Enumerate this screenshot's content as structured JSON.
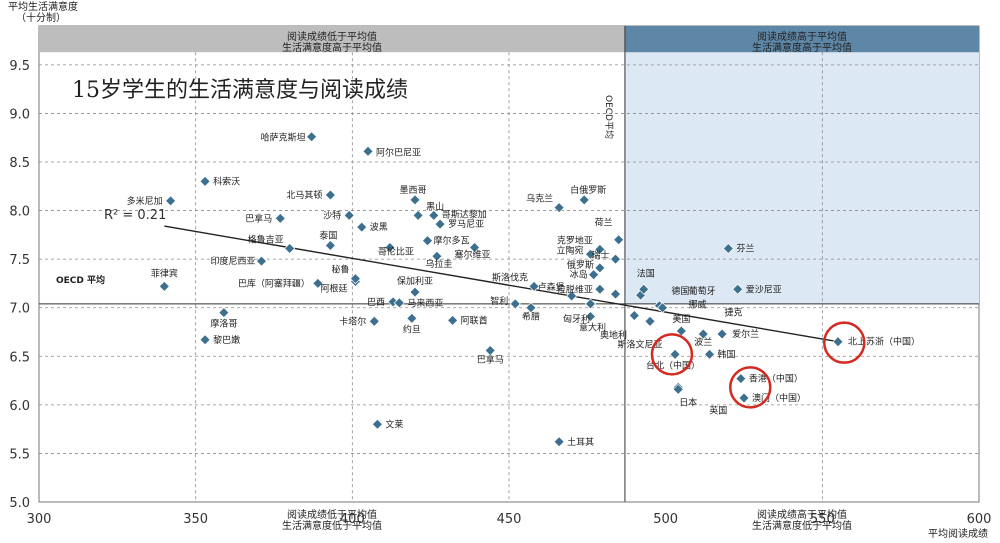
{
  "chart_data": {
    "type": "scatter",
    "title": "15岁学生的生活满意度与阅读成绩",
    "ylabel_line1": "平均生活满意度",
    "ylabel_line2": "（十分制）",
    "xlabel": "平均阅读成绩",
    "xlim": [
      300,
      600
    ],
    "ylim": [
      5.0,
      9.9
    ],
    "xticks": [
      "300",
      "350",
      "400",
      "450",
      "500",
      "550",
      "600"
    ],
    "yticks": [
      "5.0",
      "5.5",
      "6.0",
      "6.5",
      "7.0",
      "7.5",
      "8.0",
      "8.5",
      "9.0",
      "9.5"
    ],
    "oecd_reading_mean": 487,
    "oecd_satisfaction_mean": 7.04,
    "oecd_avg_label": "OECD 平均",
    "oecd_vertical_label": "OECD平均",
    "r2_label": "R² = 0.21",
    "trendline": {
      "x1": 340,
      "y1": 7.84,
      "x2": 555,
      "y2": 6.65
    },
    "quadrants": {
      "top_left": [
        "阅读成绩低于平均值",
        "生活满意度高于平均值"
      ],
      "top_right": [
        "阅读成绩高于平均值",
        "生活满意度高于平均值"
      ],
      "bottom_left": [
        "阅读成绩低于平均值",
        "生活满意度低于平均值"
      ],
      "bottom_right": [
        "阅读成绩高于平均值",
        "生活满意度低于平均值"
      ]
    },
    "highlight_color": "#d42a20",
    "point_color": "#3d6f8e",
    "points": [
      {
        "name": "哈萨克斯坦",
        "x": 387,
        "y": 8.76,
        "dx": -6,
        "dy": 4,
        "anchor": "end"
      },
      {
        "name": "阿尔巴尼亚",
        "x": 405,
        "y": 8.61,
        "dx": 8,
        "dy": 4,
        "anchor": "start"
      },
      {
        "name": "科索沃",
        "x": 353,
        "y": 8.3,
        "dx": 8,
        "dy": 3,
        "anchor": "start"
      },
      {
        "name": "北马其顿",
        "x": 393,
        "y": 8.16,
        "dx": -8,
        "dy": 3,
        "anchor": "end"
      },
      {
        "name": "多米尼加",
        "x": 342,
        "y": 8.1,
        "dx": -8,
        "dy": 3,
        "anchor": "end"
      },
      {
        "name": "墨西哥",
        "x": 420,
        "y": 8.11,
        "dx": -2,
        "dy": -7,
        "anchor": "middle"
      },
      {
        "name": "黑山",
        "x": 421,
        "y": 7.95,
        "dx": 8,
        "dy": -6,
        "anchor": "start"
      },
      {
        "name": "哥斯达黎加",
        "x": 426,
        "y": 7.95,
        "dx": 8,
        "dy": 2,
        "anchor": "start"
      },
      {
        "name": "罗马尼亚",
        "x": 428,
        "y": 7.86,
        "dx": 8,
        "dy": 3,
        "anchor": "start"
      },
      {
        "name": "乌克兰",
        "x": 466,
        "y": 8.03,
        "dx": -6,
        "dy": -6,
        "anchor": "end"
      },
      {
        "name": "白俄罗斯",
        "x": 474,
        "y": 8.11,
        "dx": 4,
        "dy": -7,
        "anchor": "middle"
      },
      {
        "name": "巴拿马",
        "x": 377,
        "y": 7.92,
        "dx": -8,
        "dy": 3,
        "anchor": "end"
      },
      {
        "name": "沙特",
        "x": 399,
        "y": 7.95,
        "dx": -8,
        "dy": 3,
        "anchor": "end"
      },
      {
        "name": "波黑",
        "x": 403,
        "y": 7.83,
        "dx": 8,
        "dy": 3,
        "anchor": "start"
      },
      {
        "name": "摩尔多瓦",
        "x": 424,
        "y": 7.69,
        "dx": 6,
        "dy": 3,
        "anchor": "start"
      },
      {
        "name": "泰国",
        "x": 393,
        "y": 7.64,
        "dx": -2,
        "dy": -7,
        "anchor": "middle"
      },
      {
        "name": "格鲁吉亚",
        "x": 380,
        "y": 7.61,
        "dx": -6,
        "dy": -6,
        "anchor": "end"
      },
      {
        "name": "哥伦比亚",
        "x": 412,
        "y": 7.62,
        "dx": 6,
        "dy": 7,
        "anchor": "middle"
      },
      {
        "name": "乌拉圭",
        "x": 427,
        "y": 7.53,
        "dx": 2,
        "dy": 11,
        "anchor": "middle"
      },
      {
        "name": "塞尔维亚",
        "x": 439,
        "y": 7.62,
        "dx": -2,
        "dy": 10,
        "anchor": "middle"
      },
      {
        "name": "荷兰",
        "x": 485,
        "y": 7.7,
        "dx": -6,
        "dy": -14,
        "anchor": "end"
      },
      {
        "name": "克罗地亚",
        "x": 479,
        "y": 7.6,
        "dx": -7,
        "dy": -6,
        "anchor": "end"
      },
      {
        "name": "立陶宛",
        "x": 476,
        "y": 7.55,
        "dx": -7,
        "dy": -1,
        "anchor": "end"
      },
      {
        "name": "瑞士",
        "x": 484,
        "y": 7.5,
        "dx": -6,
        "dy": -1,
        "anchor": "end"
      },
      {
        "name": "俄罗斯",
        "x": 479,
        "y": 7.41,
        "dx": -6,
        "dy": 0,
        "anchor": "end"
      },
      {
        "name": "冰岛",
        "x": 477,
        "y": 7.34,
        "dx": -6,
        "dy": 3,
        "anchor": "end"
      },
      {
        "name": "印度尼西亚",
        "x": 371,
        "y": 7.48,
        "dx": -6,
        "dy": 3,
        "anchor": "end"
      },
      {
        "name": "菲律宾",
        "x": 340,
        "y": 7.22,
        "dx": 0,
        "dy": -10,
        "anchor": "middle"
      },
      {
        "name": "巴西",
        "x": 413,
        "y": 7.06,
        "dx": -8,
        "dy": 3,
        "anchor": "end"
      },
      {
        "name": "巴库（阿塞拜疆）",
        "x": 389,
        "y": 7.25,
        "dx": -8,
        "dy": 3,
        "anchor": "end"
      },
      {
        "name": "阿根廷",
        "x": 401,
        "y": 7.27,
        "dx": -8,
        "dy": 10,
        "anchor": "end"
      },
      {
        "name": "秘鲁",
        "x": 401,
        "y": 7.3,
        "dx": -6,
        "dy": -6,
        "anchor": "end"
      },
      {
        "name": "保加利亚",
        "x": 420,
        "y": 7.16,
        "dx": 0,
        "dy": -8,
        "anchor": "middle"
      },
      {
        "name": "马来西亚",
        "x": 415,
        "y": 7.05,
        "dx": 8,
        "dy": 3,
        "anchor": "start"
      },
      {
        "name": "斯洛伐克",
        "x": 458,
        "y": 7.22,
        "dx": -6,
        "dy": -6,
        "anchor": "end"
      },
      {
        "name": "卢森堡",
        "x": 470,
        "y": 7.12,
        "dx": -7,
        "dy": -6,
        "anchor": "end"
      },
      {
        "name": "拉脱维亚",
        "x": 479,
        "y": 7.19,
        "dx": -7,
        "dy": 3,
        "anchor": "end"
      },
      {
        "name": "智利",
        "x": 452,
        "y": 7.04,
        "dx": -7,
        "dy": 0,
        "anchor": "end"
      },
      {
        "name": "摩洛哥",
        "x": 359,
        "y": 6.95,
        "dx": 0,
        "dy": 14,
        "anchor": "middle"
      },
      {
        "name": "卡塔尔",
        "x": 407,
        "y": 6.86,
        "dx": -8,
        "dy": 3,
        "anchor": "end"
      },
      {
        "name": "约旦",
        "x": 419,
        "y": 6.89,
        "dx": 0,
        "dy": 14,
        "anchor": "middle"
      },
      {
        "name": "阿联酋",
        "x": 432,
        "y": 6.87,
        "dx": 8,
        "dy": 3,
        "anchor": "start"
      },
      {
        "name": "希腊",
        "x": 457,
        "y": 7.0,
        "dx": 0,
        "dy": 12,
        "anchor": "middle"
      },
      {
        "name": "匈牙利",
        "x": 476,
        "y": 7.04,
        "dx": -14,
        "dy": 18,
        "anchor": "middle"
      },
      {
        "name": "意大利",
        "x": 476,
        "y": 6.91,
        "dx": 2,
        "dy": 14,
        "anchor": "middle"
      },
      {
        "name": "奥地利",
        "x": 484,
        "y": 7.14,
        "dx": -2,
        "dy": 44,
        "anchor": "middle"
      },
      {
        "name": "黎巴嫩",
        "x": 353,
        "y": 6.67,
        "dx": 8,
        "dy": 3,
        "anchor": "start"
      },
      {
        "name": "巴拿马2",
        "x": 444,
        "y": 6.56,
        "dx": 0,
        "dy": 12,
        "anchor": "middle",
        "label": "巴拿马"
      },
      {
        "name": "文莱",
        "x": 408,
        "y": 5.8,
        "dx": 8,
        "dy": 3,
        "anchor": "start"
      },
      {
        "name": "土耳其",
        "x": 466,
        "y": 5.62,
        "dx": 8,
        "dy": 3,
        "anchor": "start"
      },
      {
        "name": "芬兰",
        "x": 520,
        "y": 7.61,
        "dx": 8,
        "dy": 3,
        "anchor": "start"
      },
      {
        "name": "葡萄牙",
        "x": 492,
        "y": 7.13,
        "dx": 48,
        "dy": -1,
        "anchor": "start"
      },
      {
        "name": "法国",
        "x": 493,
        "y": 7.19,
        "dx": 2,
        "dy": -13,
        "anchor": "middle"
      },
      {
        "name": "德国",
        "x": 498,
        "y": 7.02,
        "dx": 12,
        "dy": -12,
        "anchor": "start"
      },
      {
        "name": "爱沙尼亚",
        "x": 523,
        "y": 7.19,
        "dx": 8,
        "dy": 3,
        "anchor": "start"
      },
      {
        "name": "挪威",
        "x": 499,
        "y": 7.0,
        "dx": 26,
        "dy": 0,
        "anchor": "start"
      },
      {
        "name": "捷克",
        "x": 490,
        "y": 6.92,
        "dx": 90,
        "dy": 0,
        "anchor": "start"
      },
      {
        "name": "美国",
        "x": 505,
        "y": 6.76,
        "dx": 0,
        "dy": -9,
        "anchor": "middle"
      },
      {
        "name": "斯洛文尼亚",
        "x": 495,
        "y": 6.86,
        "dx": -10,
        "dy": 26,
        "anchor": "middle"
      },
      {
        "name": "波兰",
        "x": 512,
        "y": 6.73,
        "dx": 0,
        "dy": 11,
        "anchor": "middle"
      },
      {
        "name": "爱尔兰",
        "x": 518,
        "y": 6.73,
        "dx": 10,
        "dy": 3,
        "anchor": "start"
      },
      {
        "name": "台北（中国）",
        "x": 503,
        "y": 6.52,
        "dx": -2,
        "dy": 14,
        "anchor": "middle"
      },
      {
        "name": "韩国",
        "x": 514,
        "y": 6.52,
        "dx": 8,
        "dy": 3,
        "anchor": "start"
      },
      {
        "name": "日本",
        "x": 504,
        "y": 6.18,
        "dx": 10,
        "dy": 18,
        "anchor": "middle"
      },
      {
        "name": "香港（中国）",
        "x": 524,
        "y": 6.27,
        "dx": 8,
        "dy": 3,
        "anchor": "start"
      },
      {
        "name": "澳门（中国）",
        "x": 525,
        "y": 6.07,
        "dx": 8,
        "dy": 3,
        "anchor": "start"
      },
      {
        "name": "英国",
        "x": 504,
        "y": 6.16,
        "dx": 40,
        "dy": 24,
        "anchor": "middle"
      },
      {
        "name": "北京-上海-江苏-浙江（中国）",
        "x": 555,
        "y": 6.65,
        "dx": 10,
        "dy": 3,
        "anchor": "start",
        "label": "北上苏浙（中国）"
      }
    ],
    "highlights": [
      {
        "x": 502,
        "y": 6.52
      },
      {
        "x": 527,
        "y": 6.18
      },
      {
        "x": 557,
        "y": 6.64
      }
    ]
  }
}
